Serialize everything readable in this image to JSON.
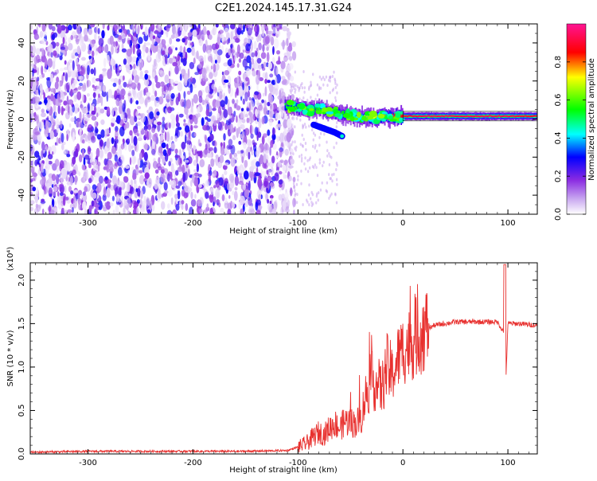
{
  "title": "C2E1.2024.145.17.31.G24",
  "chart_data": [
    {
      "type": "heatmap",
      "xlabel": "Height of straight line (km)",
      "ylabel": "Frequency (Hz)",
      "xlim": [
        -355,
        128
      ],
      "ylim": [
        -50,
        50
      ],
      "xticks": [
        -300,
        -200,
        -100,
        0,
        100
      ],
      "yticks": [
        -40,
        -20,
        0,
        20,
        40
      ],
      "colorbar": {
        "label": "Normalized spectral amplitude",
        "range": [
          0.0,
          1.0
        ],
        "ticks": [
          0.0,
          0.2,
          0.4,
          0.6,
          0.8
        ],
        "colormap": [
          "#ffffff",
          "#8a2be2",
          "#0000ff",
          "#00ffff",
          "#00ff00",
          "#ffff00",
          "#ff0000",
          "#ff1493"
        ]
      },
      "noise_region_x": [
        -355,
        -108
      ],
      "signal_track": [
        {
          "x": -112,
          "y": 7,
          "amplitude": 0.45
        },
        {
          "x": -100,
          "y": 6,
          "amplitude": 0.5
        },
        {
          "x": -90,
          "y": 5,
          "amplitude": 0.5
        },
        {
          "x": -80,
          "y": 6,
          "amplitude": 0.45
        },
        {
          "x": -70,
          "y": 4,
          "amplitude": 0.45
        },
        {
          "x": -60,
          "y": 3,
          "amplitude": 0.45
        },
        {
          "x": -50,
          "y": 2,
          "amplitude": 0.5
        },
        {
          "x": -40,
          "y": 1,
          "amplitude": 0.55
        },
        {
          "x": -30,
          "y": 1,
          "amplitude": 0.6
        },
        {
          "x": -20,
          "y": 1,
          "amplitude": 0.7
        },
        {
          "x": -10,
          "y": 1,
          "amplitude": 0.75
        },
        {
          "x": 0,
          "y": 1.5,
          "amplitude": 0.8
        },
        {
          "x": 20,
          "y": 1.5,
          "amplitude": 0.85
        },
        {
          "x": 40,
          "y": 1.5,
          "amplitude": 0.85
        },
        {
          "x": 60,
          "y": 1.5,
          "amplitude": 0.85
        },
        {
          "x": 80,
          "y": 1.5,
          "amplitude": 0.85
        },
        {
          "x": 100,
          "y": 1.5,
          "amplitude": 0.85
        },
        {
          "x": 128,
          "y": 1.5,
          "amplitude": 0.8
        }
      ],
      "secondary_track": [
        {
          "x": -85,
          "y": -3
        },
        {
          "x": -75,
          "y": -5
        },
        {
          "x": -65,
          "y": -7
        },
        {
          "x": -58,
          "y": -9
        }
      ]
    },
    {
      "type": "line",
      "xlabel": "Height of straight line (km)",
      "ylabel": "SNR (10 * v/v)",
      "yscale_label": "(x10⁴)",
      "xlim": [
        -355,
        128
      ],
      "ylim": [
        0,
        2.2
      ],
      "xticks": [
        -300,
        -200,
        -100,
        0,
        100
      ],
      "yticks": [
        0.0,
        0.5,
        1.0,
        1.5,
        2.0
      ],
      "series": [
        {
          "color": "#e8302e",
          "x": [
            -355,
            -300,
            -250,
            -200,
            -150,
            -110,
            -100,
            -92,
            -85,
            -80,
            -75,
            -70,
            -65,
            -60,
            -55,
            -50,
            -45,
            -40,
            -35,
            -30,
            -25,
            -20,
            -15,
            -10,
            -5,
            0,
            5,
            10,
            15,
            20,
            25,
            30,
            40,
            50,
            60,
            70,
            80,
            90,
            96,
            98,
            100,
            110,
            128
          ],
          "y": [
            0.02,
            0.03,
            0.03,
            0.03,
            0.03,
            0.04,
            0.08,
            0.12,
            0.2,
            0.25,
            0.22,
            0.3,
            0.35,
            0.3,
            0.38,
            0.36,
            0.35,
            0.4,
            0.7,
            0.85,
            0.8,
            0.75,
            1.0,
            0.9,
            1.1,
            1.2,
            1.25,
            1.3,
            1.38,
            1.42,
            1.45,
            1.48,
            1.5,
            1.52,
            1.52,
            1.52,
            1.52,
            1.52,
            1.4,
            0.8,
            1.5,
            1.5,
            1.48
          ]
        }
      ]
    }
  ]
}
